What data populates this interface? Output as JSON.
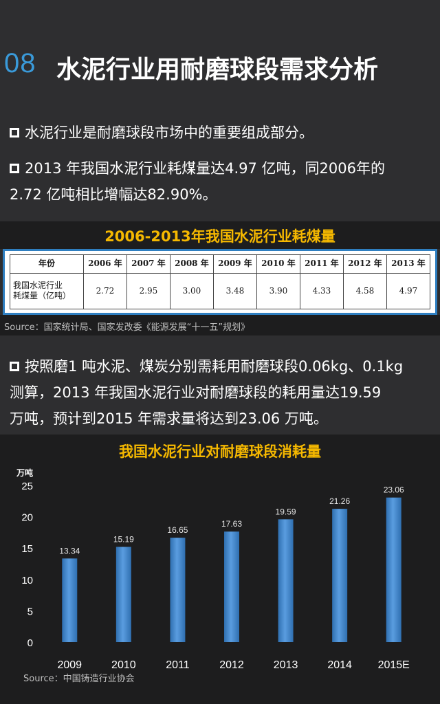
{
  "header": {
    "number": "08",
    "title": "水泥行业用耐磨球段需求分析"
  },
  "bullets": {
    "b1": "水泥行业是耐磨球段市场中的重要组成部分。",
    "b2_line1": "2013  年我国水泥行业耗煤量达4.97  亿吨，同2006年的",
    "b2_line2": "2.72 亿吨相比增幅达82.90%。",
    "b3_line1": "按照磨1 吨水泥、煤炭分别需耗用耐磨球段0.06kg、0.1kg",
    "b3_line2": "测算，2013 年我国水泥行业对耐磨球段的耗用量达19.59",
    "b3_line3": "万吨，预计到2015 年需求量将达到23.06 万吨。"
  },
  "table": {
    "title": "2006-2013年我国水泥行业耗煤量",
    "header_label": "年份",
    "years": [
      "2006 年",
      "2007 年",
      "2008 年",
      "2009 年",
      "2010 年",
      "2011 年",
      "2012 年",
      "2013 年"
    ],
    "row_label_line1": "我国水泥行业",
    "row_label_line2": "耗煤量（亿吨）",
    "values": [
      "2.72",
      "2.95",
      "3.00",
      "3.48",
      "3.90",
      "4.33",
      "4.58",
      "4.97"
    ],
    "source": "Source：国家统计局、国家发改委《能源发展“十一五”规划》"
  },
  "chart_data": {
    "type": "bar",
    "title": "我国水泥行业对耐磨球段消耗量",
    "ylabel": "万吨",
    "xlabel": "",
    "categories": [
      "2009",
      "2010",
      "2011",
      "2012",
      "2013",
      "2014",
      "2015E"
    ],
    "values": [
      13.34,
      15.19,
      16.65,
      17.63,
      19.59,
      21.26,
      23.06
    ],
    "value_labels": [
      "13.34",
      "15.19",
      "16.65",
      "17.63",
      "19.59",
      "21.26",
      "23.06"
    ],
    "ylim": [
      0,
      25
    ],
    "yticks": [
      0,
      5,
      10,
      15,
      20,
      25
    ],
    "grid": false,
    "legend": "none",
    "bar_color": "#3f86cc",
    "source": "Source：中国铸造行业协会"
  },
  "colors": {
    "accent": "#3a9ad9",
    "title_yellow": "#f5b800",
    "background": "#2e2e30"
  }
}
